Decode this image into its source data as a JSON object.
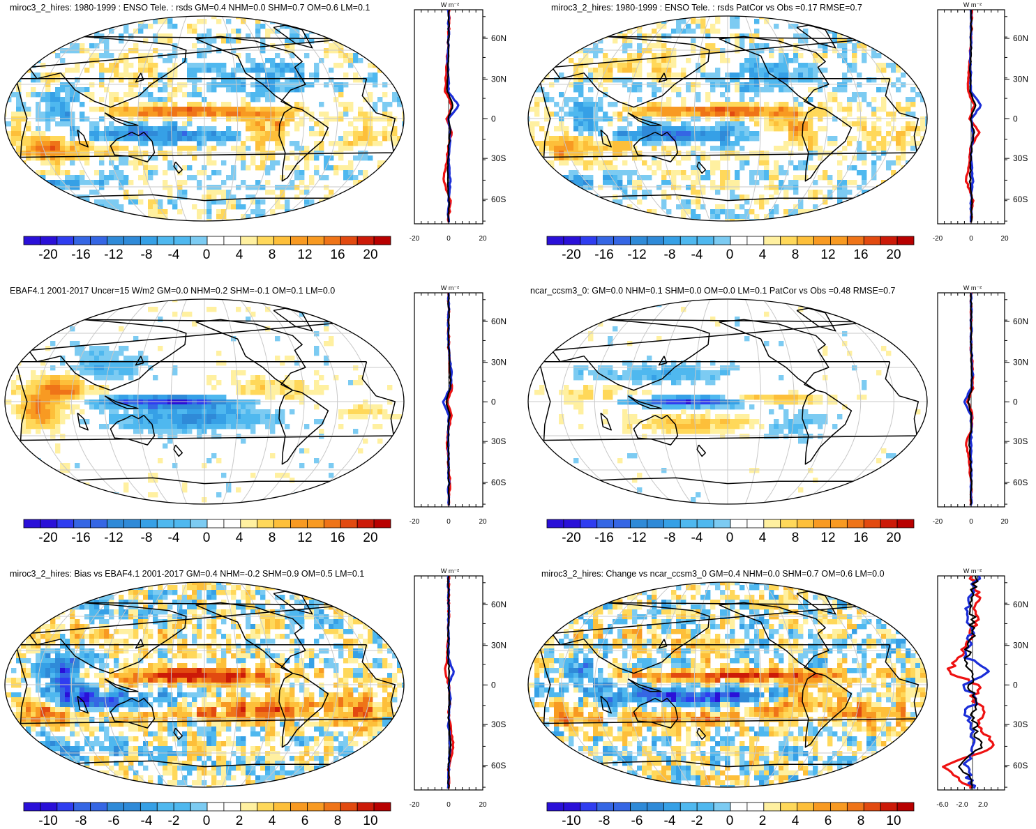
{
  "colors": {
    "neg": [
      "#2a10d8",
      "#2f3df0",
      "#3566e4",
      "#2f8ad8",
      "#36a0e6",
      "#4fb8ef",
      "#7ccbf2"
    ],
    "pos": [
      "#fff0a0",
      "#ffd85a",
      "#fdbf3a",
      "#f89a22",
      "#ef7418",
      "#e24a10",
      "#cc1a08",
      "#b80000"
    ],
    "obs_line": "#ee1111",
    "model_line": "#1b2ed8",
    "third_line": "#000000",
    "coast": "#000000",
    "grid": "#c8c8c8"
  },
  "panels": [
    {
      "id": "p1",
      "title": "miroc3_2_hires: 1980-1999 : ENSO Tele. : rsds GM=0.4 NHM=0.0 SHM=0.7 OM=0.6 LM=0.1",
      "colorbar": {
        "labels": [
          "-20",
          "-16",
          "-12",
          "-8",
          "-4",
          "0",
          "4",
          "8",
          "12",
          "16",
          "20"
        ]
      },
      "zonal": {
        "unit": "W m⁻²",
        "lat_labels": [
          "60N",
          "30N",
          "0",
          "30S",
          "60S"
        ],
        "x_labels": [
          "-20",
          "0",
          "20"
        ]
      }
    },
    {
      "id": "p2",
      "title": "miroc3_2_hires: 1980-1999 : ENSO Tele. : rsds PatCor vs Obs =0.17 RMSE=0.7",
      "colorbar": {
        "labels": [
          "-20",
          "-16",
          "-12",
          "-8",
          "-4",
          "0",
          "4",
          "8",
          "12",
          "16",
          "20"
        ]
      },
      "zonal": {
        "unit": "W m⁻²",
        "lat_labels": [
          "60N",
          "30N",
          "0",
          "30S",
          "60S"
        ],
        "x_labels": [
          "-20",
          "0",
          "20"
        ]
      }
    },
    {
      "id": "p3",
      "title": "EBAF4.1 2001-2017 Uncer=15 W/m2 GM=0.0 NHM=0.2 SHM=-0.1 OM=0.1 LM=0.0",
      "colorbar": {
        "labels": [
          "-20",
          "-16",
          "-12",
          "-8",
          "-4",
          "0",
          "4",
          "8",
          "12",
          "16",
          "20"
        ]
      },
      "zonal": {
        "unit": "W m⁻²",
        "lat_labels": [
          "60N",
          "30N",
          "0",
          "30S",
          "60S"
        ],
        "x_labels": [
          "-20",
          "0",
          "20"
        ]
      }
    },
    {
      "id": "p4",
      "title": "ncar_ccsm3_0: GM=0.0 NHM=0.1 SHM=0.0 OM=0.0 LM=0.1 PatCor vs Obs =0.48 RMSE=0.7",
      "colorbar": {
        "labels": [
          "-20",
          "-16",
          "-12",
          "-8",
          "-4",
          "0",
          "4",
          "8",
          "12",
          "16",
          "20"
        ]
      },
      "zonal": {
        "unit": "W m⁻²",
        "lat_labels": [
          "60N",
          "30N",
          "0",
          "30S",
          "60S"
        ],
        "x_labels": [
          "-20",
          "0",
          "20"
        ]
      }
    },
    {
      "id": "p5",
      "title": "miroc3_2_hires: Bias vs EBAF4.1 2001-2017 GM=0.4 NHM=-0.2 SHM=0.9 OM=0.5 LM=0.1",
      "colorbar": {
        "labels": [
          "-10",
          "-8",
          "-6",
          "-4",
          "-2",
          "0",
          "2",
          "4",
          "6",
          "8",
          "10"
        ]
      },
      "zonal": {
        "unit": "W m⁻²",
        "lat_labels": [
          "60N",
          "30N",
          "0",
          "30S",
          "60S"
        ],
        "x_labels": [
          "-20",
          "0",
          "20"
        ]
      }
    },
    {
      "id": "p6",
      "title": "miroc3_2_hires: Change vs ncar_ccsm3_0 GM=0.4 NHM=0.0 SHM=0.7 OM=0.6 LM=0.0",
      "colorbar": {
        "labels": [
          "-10",
          "-8",
          "-6",
          "-4",
          "-2",
          "0",
          "2",
          "4",
          "6",
          "8",
          "10"
        ]
      },
      "zonal": {
        "unit": "W m⁻²",
        "lat_labels": [
          "60N",
          "30N",
          "0",
          "30S",
          "60S"
        ],
        "x_labels": [
          "-6.0",
          "-2.0",
          "2.0"
        ]
      }
    }
  ],
  "chart_data": [
    {
      "type": "heatmap",
      "panel": "p1",
      "title": "miroc3_2_hires: 1980-1999 : ENSO Tele. : rsds GM=0.4 NHM=0.0 SHM=0.7 OM=0.6 LM=0.1",
      "projection": "Robinson",
      "colorbar_range": [
        -22,
        22
      ],
      "zonal_mean": {
        "lat": [
          80,
          60,
          40,
          20,
          10,
          0,
          -10,
          -20,
          -30,
          -45,
          -60,
          -75
        ],
        "model": [
          0,
          0,
          -0.5,
          0,
          6,
          0,
          1,
          0.5,
          0,
          1,
          0,
          0
        ],
        "obs": [
          0.5,
          0,
          -1,
          -2,
          2,
          -1,
          2,
          0,
          -1,
          -3,
          1,
          0
        ]
      }
    },
    {
      "type": "heatmap",
      "panel": "p2",
      "title": "miroc3_2_hires: 1980-1999 : ENSO Tele. : rsds PatCor vs Obs =0.17 RMSE=0.7",
      "projection": "Robinson",
      "colorbar_range": [
        -22,
        22
      ],
      "zonal_mean": {
        "lat": [
          80,
          60,
          40,
          20,
          10,
          0,
          -10,
          -20,
          -30,
          -45,
          -60,
          -75
        ],
        "model": [
          0,
          0,
          -0.5,
          0,
          6,
          0,
          1,
          0.5,
          0,
          1,
          0,
          0
        ],
        "obs": [
          0.5,
          0,
          -1,
          -2,
          2,
          -1,
          5,
          0,
          -1,
          -3,
          1,
          0
        ]
      }
    },
    {
      "type": "heatmap",
      "panel": "p3",
      "title": "EBAF4.1 2001-2017 Uncer=15 W/m2 GM=0.0 NHM=0.2 SHM=-0.1 OM=0.1 LM=0.0",
      "projection": "Robinson",
      "colorbar_range": [
        -22,
        22
      ],
      "zonal_mean": {
        "lat": [
          80,
          60,
          40,
          20,
          10,
          0,
          -10,
          -20,
          -30,
          -45,
          -60,
          -75
        ],
        "model": [
          0,
          0,
          0,
          2,
          1,
          -3,
          0,
          0,
          0,
          0,
          0,
          0
        ],
        "obs": [
          0,
          0,
          0,
          1,
          2,
          -1,
          2,
          0,
          -1,
          0,
          1,
          0
        ]
      }
    },
    {
      "type": "heatmap",
      "panel": "p4",
      "title": "ncar_ccsm3_0: GM=0.0 NHM=0.1 SHM=0.0 OM=0.0 LM=0.1 PatCor vs Obs =0.48 RMSE=0.7",
      "projection": "Robinson",
      "colorbar_range": [
        -22,
        22
      ],
      "zonal_mean": {
        "lat": [
          80,
          60,
          40,
          20,
          10,
          0,
          -10,
          -20,
          -30,
          -45,
          -60,
          -75
        ],
        "model": [
          0,
          0,
          0,
          1,
          0,
          -4,
          0,
          0,
          0,
          0,
          0,
          0
        ],
        "obs": [
          0,
          0,
          0,
          1,
          1,
          -2,
          1,
          0,
          -3,
          -1,
          0,
          0
        ]
      }
    },
    {
      "type": "heatmap",
      "panel": "p5",
      "title": "miroc3_2_hires: Bias vs EBAF4.1 2001-2017 GM=0.4 NHM=-0.2 SHM=0.9 OM=0.5 LM=0.1",
      "projection": "Robinson",
      "colorbar_range": [
        -11,
        11
      ],
      "zonal_mean": {
        "lat": [
          80,
          60,
          40,
          20,
          10,
          0,
          -10,
          -20,
          -30,
          -45,
          -60,
          -75
        ],
        "model": [
          0,
          0,
          0,
          0,
          3,
          0,
          1,
          0,
          0,
          1,
          0,
          0
        ],
        "obs": [
          0,
          0,
          0,
          -1,
          -2,
          0,
          1,
          0,
          1,
          3,
          0,
          0
        ]
      }
    },
    {
      "type": "heatmap",
      "panel": "p6",
      "title": "miroc3_2_hires: Change vs ncar_ccsm3_0 GM=0.4 NHM=0.0 SHM=0.7 OM=0.6 LM=0.0",
      "projection": "Robinson",
      "colorbar_range": [
        -11,
        11
      ],
      "zonal_mean": {
        "lat": [
          80,
          60,
          40,
          20,
          10,
          0,
          -10,
          -20,
          -30,
          -45,
          -60,
          -75
        ],
        "model": [
          1,
          -1,
          0,
          -1,
          3,
          -2,
          1,
          -1,
          0,
          0,
          -1,
          0
        ],
        "obs": [
          0,
          1,
          0,
          -2,
          -4,
          1,
          0,
          2,
          1,
          4,
          -5,
          0
        ]
      }
    }
  ]
}
